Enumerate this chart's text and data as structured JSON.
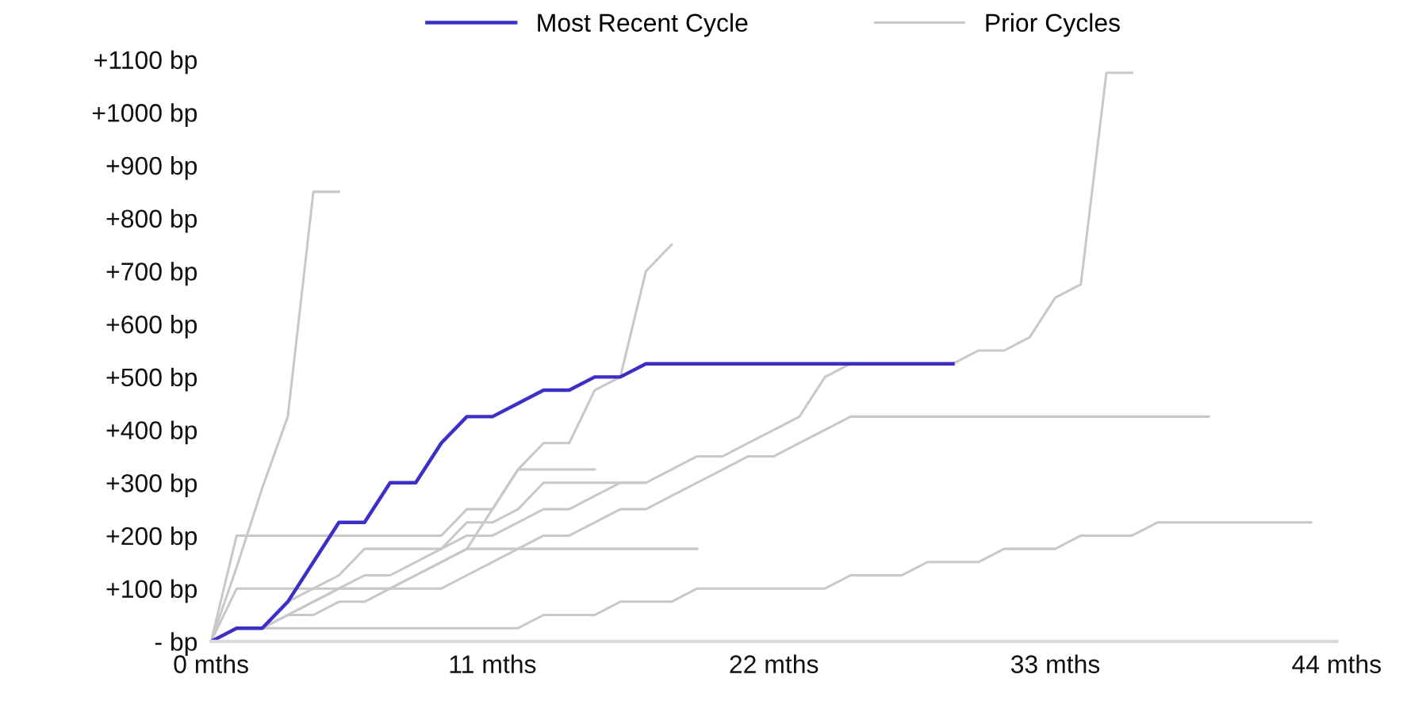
{
  "chart_data": {
    "type": "line",
    "x": [
      0,
      1,
      2,
      3,
      4,
      5,
      6,
      7,
      8,
      9,
      10,
      11,
      12,
      13,
      14,
      15,
      16,
      17,
      18,
      19,
      20,
      21,
      22,
      23,
      24,
      25,
      26,
      27,
      28,
      29
    ],
    "xlim": [
      0,
      44
    ],
    "xticks": [
      {
        "value": 0,
        "label": "0 mths"
      },
      {
        "value": 11,
        "label": "11 mths"
      },
      {
        "value": 22,
        "label": "22 mths"
      },
      {
        "value": 33,
        "label": "33 mths"
      },
      {
        "value": 44,
        "label": "44 mths"
      }
    ],
    "ylim": [
      0,
      1100
    ],
    "yticks": [
      {
        "value": 0,
        "label": "- bp"
      },
      {
        "value": 100,
        "label": "+100 bp"
      },
      {
        "value": 200,
        "label": "+200 bp"
      },
      {
        "value": 300,
        "label": "+300 bp"
      },
      {
        "value": 400,
        "label": "+400 bp"
      },
      {
        "value": 500,
        "label": "+500 bp"
      },
      {
        "value": 600,
        "label": "+600 bp"
      },
      {
        "value": 700,
        "label": "+700 bp"
      },
      {
        "value": 800,
        "label": "+800 bp"
      },
      {
        "value": 900,
        "label": "+900 bp"
      },
      {
        "value": 1000,
        "label": "+1000 bp"
      },
      {
        "value": 1100,
        "label": "+1100 bp"
      }
    ],
    "grid": false,
    "legend": "top",
    "series": [
      {
        "name": "Prior Cycles",
        "color": "#c8c8c8",
        "x": [
          0,
          1,
          2,
          3,
          4,
          5
        ],
        "values": [
          0,
          140,
          290,
          425,
          850,
          850
        ]
      },
      {
        "color": "#c8c8c8",
        "x": [
          0,
          1,
          2,
          3,
          4,
          5,
          6,
          7,
          8,
          9,
          10,
          11,
          12,
          13,
          14,
          15
        ],
        "values": [
          0,
          200,
          200,
          200,
          200,
          200,
          200,
          200,
          200,
          200,
          250,
          250,
          325,
          325,
          325,
          325
        ]
      },
      {
        "color": "#c8c8c8",
        "x": [
          0,
          1,
          2,
          3,
          4,
          5,
          6,
          7,
          8,
          9,
          10,
          11,
          12,
          13,
          14,
          15,
          16,
          17
        ],
        "values": [
          0,
          25,
          25,
          75,
          100,
          125,
          175,
          175,
          175,
          175,
          225,
          225,
          250,
          300,
          300,
          300,
          300,
          300
        ]
      },
      {
        "color": "#c8c8c8",
        "x": [
          0,
          1,
          2,
          3,
          4,
          5,
          6,
          7,
          8,
          9,
          10,
          11,
          12,
          13,
          14,
          15,
          16,
          17,
          18,
          19
        ],
        "values": [
          0,
          100,
          100,
          100,
          100,
          100,
          100,
          100,
          125,
          150,
          175,
          175,
          175,
          175,
          175,
          175,
          175,
          175,
          175,
          175
        ]
      },
      {
        "color": "#c8c8c8",
        "x": [
          0,
          1,
          2,
          3,
          4,
          5,
          6,
          7,
          8,
          9,
          10,
          11,
          12,
          13,
          14,
          15,
          16,
          17,
          18
        ],
        "values": [
          0,
          25,
          25,
          50,
          75,
          100,
          100,
          100,
          125,
          150,
          175,
          250,
          325,
          375,
          375,
          475,
          500,
          700,
          750
        ]
      },
      {
        "color": "#c8c8c8",
        "x": [
          0,
          1,
          2,
          3,
          4,
          5,
          6,
          7,
          8,
          9,
          10,
          11,
          12,
          13,
          14,
          15,
          16,
          17,
          18,
          19,
          20,
          21,
          22,
          23,
          24,
          25,
          26,
          27,
          28,
          29,
          30,
          31,
          32,
          33,
          34,
          35,
          36
        ],
        "values": [
          0,
          25,
          25,
          50,
          75,
          100,
          125,
          125,
          150,
          175,
          200,
          200,
          225,
          250,
          250,
          275,
          300,
          300,
          325,
          350,
          350,
          375,
          400,
          425,
          500,
          525,
          null,
          null,
          null,
          525,
          550,
          550,
          575,
          650,
          675,
          1075,
          1075
        ]
      },
      {
        "color": "#c8c8c8",
        "x": [
          0,
          1,
          2,
          3,
          4,
          5,
          6,
          7,
          8,
          9,
          10,
          11,
          12,
          13,
          14,
          15,
          16,
          17,
          18,
          19,
          20,
          21,
          22,
          23,
          24,
          25,
          26,
          27,
          28,
          29,
          30,
          31,
          32,
          33,
          34,
          35,
          36,
          37,
          38,
          39
        ],
        "values": [
          0,
          25,
          25,
          50,
          50,
          75,
          75,
          100,
          100,
          100,
          125,
          150,
          175,
          200,
          200,
          225,
          250,
          250,
          275,
          300,
          325,
          350,
          350,
          375,
          400,
          425,
          425,
          425,
          425,
          425,
          425,
          425,
          425,
          425,
          425,
          425,
          425,
          425,
          425,
          425
        ]
      },
      {
        "color": "#c8c8c8",
        "x": [
          0,
          1,
          2,
          3,
          4,
          5,
          6,
          7,
          8,
          9,
          10,
          11,
          12,
          13,
          14,
          15,
          16,
          17,
          18,
          19,
          20,
          21,
          22,
          23,
          24,
          25,
          26,
          27,
          28,
          29,
          30,
          31,
          32,
          33,
          34,
          35,
          36,
          37,
          38,
          39,
          40,
          41,
          42,
          43
        ],
        "values": [
          0,
          25,
          25,
          25,
          25,
          25,
          25,
          25,
          25,
          25,
          25,
          25,
          25,
          50,
          50,
          50,
          75,
          75,
          75,
          100,
          100,
          100,
          100,
          100,
          100,
          125,
          125,
          125,
          150,
          150,
          150,
          175,
          175,
          175,
          200,
          200,
          200,
          225,
          225,
          225,
          225,
          225,
          225,
          225
        ]
      },
      {
        "name": "Most Recent Cycle",
        "color": "#3c2fc8",
        "values": [
          0,
          25,
          25,
          75,
          150,
          225,
          225,
          300,
          300,
          375,
          425,
          425,
          450,
          475,
          475,
          500,
          500,
          525,
          525,
          525,
          525,
          525,
          525,
          525,
          525,
          525,
          525,
          525,
          525,
          525
        ]
      }
    ]
  }
}
